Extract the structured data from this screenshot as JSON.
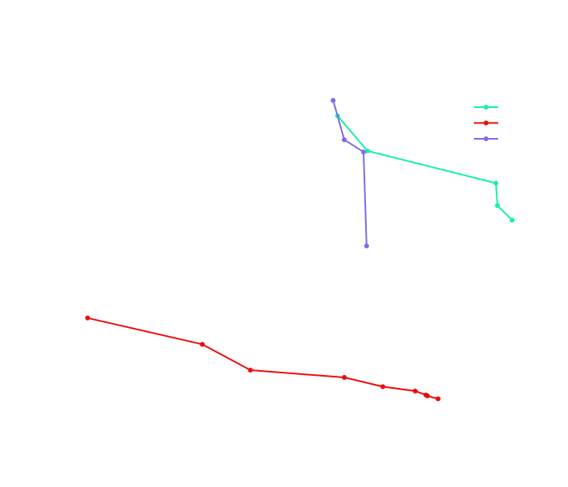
{
  "chart_data": {
    "type": "line",
    "title": "",
    "xlabel": "",
    "ylabel": "",
    "grid": false,
    "axes_visible": false,
    "xlim": [
      0,
      100
    ],
    "ylim": [
      0,
      100
    ],
    "legend": {
      "placement": "top-right",
      "show_names": false
    },
    "series": [
      {
        "color": "#19f0a3",
        "points": [
          [
            49.3,
            76.2
          ],
          [
            55.2,
            69.0
          ],
          [
            80.5,
            62.4
          ],
          [
            80.8,
            57.8
          ],
          [
            83.7,
            54.8
          ]
        ]
      },
      {
        "color": "#f00c0c",
        "points": [
          [
            0.0,
            34.7
          ],
          [
            22.6,
            29.3
          ],
          [
            32.1,
            24.0
          ],
          [
            50.6,
            22.5
          ],
          [
            58.2,
            20.6
          ],
          [
            64.6,
            19.7
          ],
          [
            66.7,
            18.9
          ],
          [
            67.0,
            18.7
          ],
          [
            69.1,
            18.1
          ]
        ]
      },
      {
        "color": "#7b6fe6",
        "points": [
          [
            48.4,
            79.4
          ],
          [
            50.6,
            71.3
          ],
          [
            54.4,
            68.8
          ],
          [
            55.0,
            49.5
          ]
        ]
      }
    ]
  }
}
